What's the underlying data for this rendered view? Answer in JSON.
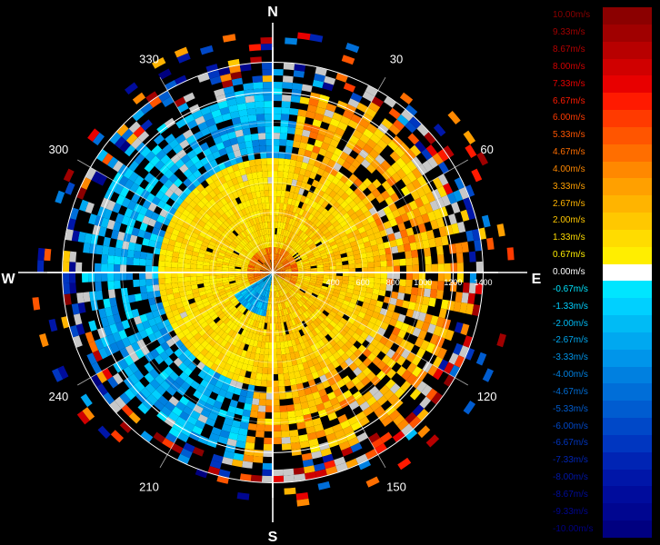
{
  "chart_data": {
    "type": "polar-radar-velocity",
    "compass": {
      "north": "N",
      "east": "E",
      "south": "S",
      "west": "W"
    },
    "azimuth_labels": [
      "30",
      "60",
      "120",
      "150",
      "210",
      "240",
      "300",
      "330"
    ],
    "range_labels": [
      "400",
      "600",
      "800",
      "1000",
      "1200",
      "1400"
    ],
    "range_max": 1500,
    "unit": "m/s",
    "legend": [
      {
        "label": "10.00m/s",
        "color": "#8b0000"
      },
      {
        "label": "9.33m/s",
        "color": "#a00000"
      },
      {
        "label": "8.67m/s",
        "color": "#b80000"
      },
      {
        "label": "8.00m/s",
        "color": "#d00000"
      },
      {
        "label": "7.33m/s",
        "color": "#e80000"
      },
      {
        "label": "6.67m/s",
        "color": "#ff1a00"
      },
      {
        "label": "6.00m/s",
        "color": "#ff3a00"
      },
      {
        "label": "5.33m/s",
        "color": "#ff5500"
      },
      {
        "label": "4.67m/s",
        "color": "#ff6e00"
      },
      {
        "label": "4.00m/s",
        "color": "#ff8800"
      },
      {
        "label": "3.33m/s",
        "color": "#ffa000"
      },
      {
        "label": "2.67m/s",
        "color": "#ffb400"
      },
      {
        "label": "2.00m/s",
        "color": "#ffc800"
      },
      {
        "label": "1.33m/s",
        "color": "#ffdc00"
      },
      {
        "label": "0.67m/s",
        "color": "#ffee00"
      },
      {
        "label": "0.00m/s",
        "color": "#ffffff"
      },
      {
        "label": "-0.67m/s",
        "color": "#00e5ff"
      },
      {
        "label": "-1.33m/s",
        "color": "#00d0ff"
      },
      {
        "label": "-2.00m/s",
        "color": "#00bbf5"
      },
      {
        "label": "-2.67m/s",
        "color": "#00a8f0"
      },
      {
        "label": "-3.33m/s",
        "color": "#0095ea"
      },
      {
        "label": "-4.00m/s",
        "color": "#0080e0"
      },
      {
        "label": "-4.67m/s",
        "color": "#006ed8"
      },
      {
        "label": "-5.33m/s",
        "color": "#005cd0"
      },
      {
        "label": "-6.00m/s",
        "color": "#0048c8"
      },
      {
        "label": "-6.67m/s",
        "color": "#0036c0"
      },
      {
        "label": "-7.33m/s",
        "color": "#0024b4"
      },
      {
        "label": "-8.00m/s",
        "color": "#0016a8"
      },
      {
        "label": "-8.67m/s",
        "color": "#000c9c"
      },
      {
        "label": "-9.33m/s",
        "color": "#000690"
      },
      {
        "label": "-10.00m/s",
        "color": "#000080"
      }
    ]
  }
}
